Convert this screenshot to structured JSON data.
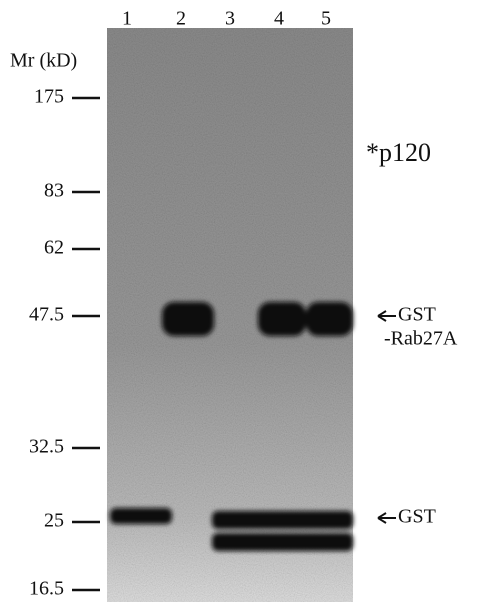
{
  "lanes": [
    "1",
    "2",
    "3",
    "4",
    "5"
  ],
  "mr_label": "Mr (kD)",
  "markers": [
    "175",
    "83",
    "62",
    "47.5",
    "32.5",
    "25",
    "16.5"
  ],
  "annotations": {
    "p120": "*p120",
    "gst_rab27a_1": "GST",
    "gst_rab27a_2": "-Rab27A",
    "gst": "GST"
  }
}
